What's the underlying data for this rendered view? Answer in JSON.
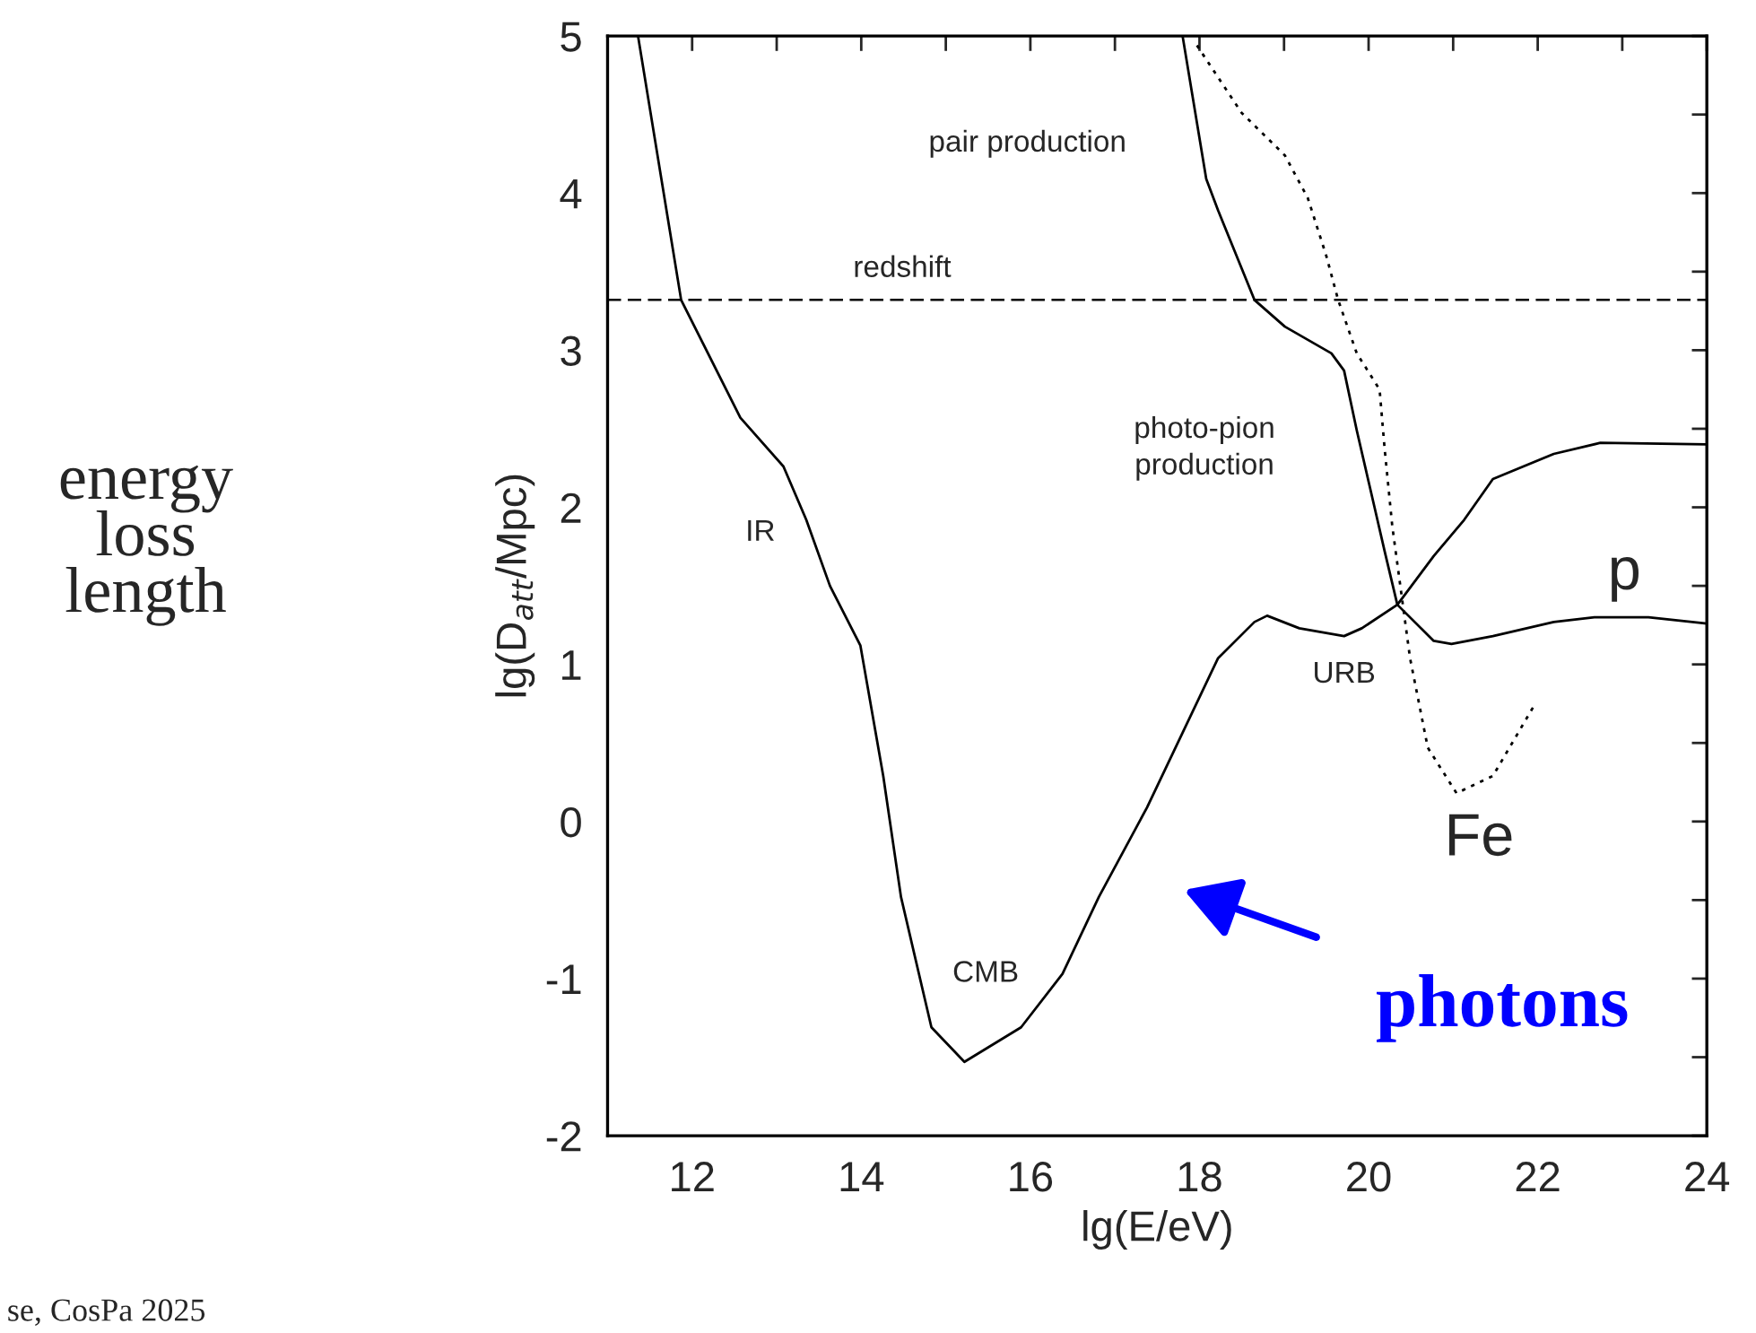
{
  "chart_data": {
    "type": "line",
    "xlabel": "lg(E/eV)",
    "ylabel": "lg(D$_{att}$/Mpc)",
    "xlim": [
      11,
      24
    ],
    "ylim": [
      -2,
      5
    ],
    "xticks": [
      {
        "value": 11,
        "label": null
      },
      12,
      {
        "value": 13,
        "label": null
      },
      14,
      {
        "value": 15,
        "label": null
      },
      16,
      {
        "value": 17,
        "label": null
      },
      18,
      {
        "value": 19,
        "label": null
      },
      20,
      {
        "value": 21,
        "label": null
      },
      22,
      {
        "value": 23,
        "label": null
      },
      24
    ],
    "yticks": [
      -2,
      {
        "value": -1.5,
        "label": null
      },
      -1,
      {
        "value": -0.5,
        "label": null
      },
      0,
      {
        "value": 0.5,
        "label": null
      },
      1,
      {
        "value": 1.5,
        "label": null
      },
      2,
      {
        "value": 2.5,
        "label": null
      },
      3,
      {
        "value": 3.5,
        "label": null
      },
      4,
      {
        "value": 4.5,
        "label": null
      },
      5
    ],
    "grid": false,
    "legend": false,
    "marker": "none",
    "series": [
      {
        "color": "#000000",
        "line_style": "solid",
        "x": [
          11.36,
          11.87,
          12.57,
          13.08,
          13.35,
          13.63,
          13.99,
          14.26,
          14.47,
          14.83,
          15.22,
          15.89,
          16.38,
          16.81,
          17.38,
          18.22,
          18.65,
          18.8,
          19.18,
          19.71,
          19.92,
          20.34,
          20.41,
          20.77,
          21.13,
          21.47,
          22.19,
          22.74,
          24.0
        ],
        "values": [
          5.0,
          3.32,
          2.57,
          2.26,
          1.92,
          1.5,
          1.12,
          0.29,
          -0.48,
          -1.31,
          -1.53,
          -1.31,
          -0.97,
          -0.48,
          0.09,
          1.04,
          1.27,
          1.31,
          1.23,
          1.18,
          1.23,
          1.38,
          1.43,
          1.69,
          1.92,
          2.18,
          2.34,
          2.41,
          2.4
        ]
      },
      {
        "color": "#000000",
        "line_style": "solid",
        "x": [
          17.8,
          18.08,
          18.22,
          18.65,
          19.01,
          19.56,
          19.71,
          19.86,
          20.07,
          20.19,
          20.34,
          20.77,
          20.98,
          21.47,
          22.19,
          22.67,
          23.31,
          24.0
        ],
        "values": [
          5.0,
          4.09,
          3.89,
          3.32,
          3.15,
          2.98,
          2.87,
          2.49,
          2.0,
          1.72,
          1.38,
          1.15,
          1.13,
          1.18,
          1.27,
          1.3,
          1.3,
          1.26
        ]
      },
      {
        "color": "#000000",
        "line_style": "dotted",
        "x": [
          17.97,
          18.5,
          19.01,
          19.28,
          19.5,
          19.64,
          19.86,
          20.13,
          20.19,
          20.28,
          20.49,
          20.7,
          21.04,
          21.47,
          21.97
        ],
        "values": [
          4.94,
          4.51,
          4.24,
          3.97,
          3.6,
          3.32,
          2.98,
          2.75,
          2.37,
          1.88,
          1.04,
          0.47,
          0.18,
          0.29,
          0.75
        ]
      }
    ],
    "ref_lines": [
      {
        "axis": "y",
        "value": 3.32,
        "color": "#000000",
        "line_style": "dashed"
      }
    ],
    "annotations": [
      "pair production",
      "redshift",
      "photo-pion\nproduction",
      "IR",
      "CMB",
      "URB",
      "p",
      "Fe",
      "photons",
      "energy\nloss\nlength",
      "se, CosPa 2025"
    ]
  }
}
